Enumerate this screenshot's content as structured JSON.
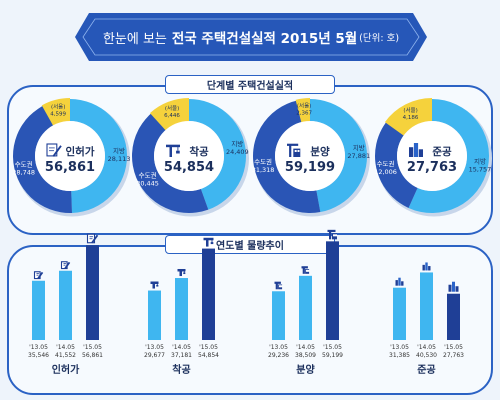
{
  "header": {
    "pre": "한눈에 보는",
    "main": "전국 주택건설실적 2015년 5월",
    "unit": "(단위: 호)"
  },
  "section_top_title": "단계별 주택건설실적",
  "section_bottom_title": "연도별 물량추이",
  "colors": {
    "capital": "#2a55b5",
    "region": "#3fb6f0",
    "seoul": "#f5d23c",
    "bar_light": "#3fb6f0",
    "bar_dark": "#1f3f96",
    "frame": "#2b62c4"
  },
  "labels": {
    "capital": "수도권",
    "region": "지방",
    "seoul": "(서울)"
  },
  "chart_data": [
    {
      "type": "pie",
      "title": "인허가",
      "total": "56,861",
      "slices": [
        {
          "label": "수도권",
          "value": 28748,
          "display": "28,748"
        },
        {
          "label": "지방",
          "value": 28113,
          "display": "28,113"
        }
      ],
      "inner": {
        "label": "(서울)",
        "value": 4599,
        "display": "4,599"
      },
      "icon": "document-pen-icon"
    },
    {
      "type": "pie",
      "title": "착공",
      "total": "54,854",
      "slices": [
        {
          "label": "수도권",
          "value": 30445,
          "display": "30,445"
        },
        {
          "label": "지방",
          "value": 24409,
          "display": "24,409"
        }
      ],
      "inner": {
        "label": "(서울)",
        "value": 6446,
        "display": "6,446"
      },
      "icon": "crane-icon"
    },
    {
      "type": "pie",
      "title": "분양",
      "total": "59,199",
      "slices": [
        {
          "label": "수도권",
          "value": 31318,
          "display": "31,318"
        },
        {
          "label": "지방",
          "value": 27881,
          "display": "27,881"
        }
      ],
      "inner": {
        "label": "(서울)",
        "value": 2367,
        "display": "2,367"
      },
      "icon": "building-crane-icon"
    },
    {
      "type": "pie",
      "title": "준공",
      "total": "27,763",
      "slices": [
        {
          "label": "수도권",
          "value": 12006,
          "display": "12,006"
        },
        {
          "label": "지방",
          "value": 15757,
          "display": "15,757"
        }
      ],
      "inner": {
        "label": "(서울)",
        "value": 4186,
        "display": "4,186"
      },
      "icon": "buildings-icon"
    },
    {
      "type": "bar",
      "title": "인허가",
      "categories": [
        "'13.05",
        "'14.05",
        "'15.05"
      ],
      "values": [
        35546,
        41552,
        56861
      ],
      "displays": [
        "35,546",
        "41,552",
        "56,861"
      ],
      "icon": "document-pen-icon"
    },
    {
      "type": "bar",
      "title": "착공",
      "categories": [
        "'13.05",
        "'14.05",
        "'15.05"
      ],
      "values": [
        29677,
        37181,
        54854
      ],
      "displays": [
        "29,677",
        "37,181",
        "54,854"
      ],
      "icon": "crane-icon"
    },
    {
      "type": "bar",
      "title": "분양",
      "categories": [
        "'13.05",
        "'14.05",
        "'15.05"
      ],
      "values": [
        29236,
        38509,
        59199
      ],
      "displays": [
        "29,236",
        "38,509",
        "59,199"
      ],
      "icon": "building-crane-icon"
    },
    {
      "type": "bar",
      "title": "준공",
      "categories": [
        "'13.05",
        "'14.05",
        "'15.05"
      ],
      "values": [
        31385,
        40530,
        27763
      ],
      "displays": [
        "31,385",
        "40,530",
        "27,763"
      ],
      "icon": "buildings-icon"
    }
  ]
}
